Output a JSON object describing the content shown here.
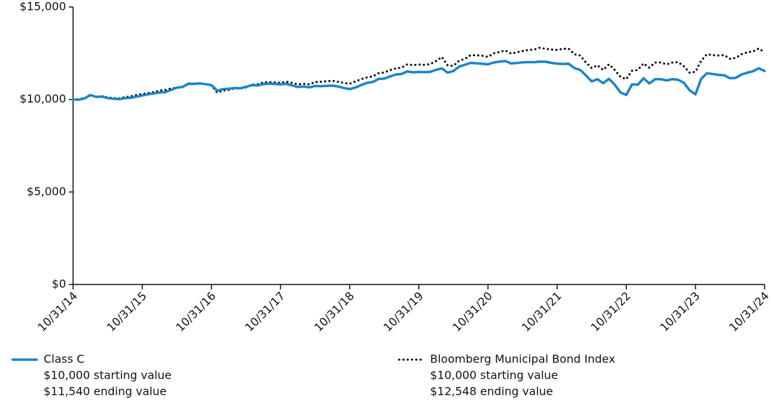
{
  "chart_data": {
    "type": "line",
    "categories": [
      "10/31/14",
      null,
      null,
      null,
      null,
      null,
      null,
      null,
      null,
      null,
      null,
      null,
      "10/31/15",
      null,
      null,
      null,
      null,
      null,
      null,
      null,
      null,
      null,
      null,
      null,
      "10/31/16",
      null,
      null,
      null,
      null,
      null,
      null,
      null,
      null,
      null,
      null,
      null,
      "10/31/17",
      null,
      null,
      null,
      null,
      null,
      null,
      null,
      null,
      null,
      null,
      null,
      "10/31/18",
      null,
      null,
      null,
      null,
      null,
      null,
      null,
      null,
      null,
      null,
      null,
      "10/31/19",
      null,
      null,
      null,
      null,
      null,
      null,
      null,
      null,
      null,
      null,
      null,
      "10/31/20",
      null,
      null,
      null,
      null,
      null,
      null,
      null,
      null,
      null,
      null,
      null,
      "10/31/21",
      null,
      null,
      null,
      null,
      null,
      null,
      null,
      null,
      null,
      null,
      null,
      "10/31/22",
      null,
      null,
      null,
      null,
      null,
      null,
      null,
      null,
      null,
      null,
      null,
      "10/31/23",
      null,
      null,
      null,
      null,
      null,
      null,
      null,
      null,
      null,
      null,
      null,
      "10/31/24"
    ],
    "series": [
      {
        "name": "Class C",
        "color": "#1a85c6",
        "style": "solid",
        "start_text": "$10,000 starting value",
        "end_text": "$11,540 ending value",
        "values": [
          10000,
          9990,
          10060,
          10250,
          10140,
          10160,
          10080,
          10040,
          10020,
          10070,
          10090,
          10150,
          10220,
          10280,
          10330,
          10380,
          10400,
          10520,
          10640,
          10680,
          10850,
          10840,
          10870,
          10830,
          10780,
          10480,
          10560,
          10580,
          10620,
          10610,
          10680,
          10780,
          10760,
          10830,
          10860,
          10840,
          10820,
          10850,
          10760,
          10680,
          10700,
          10660,
          10730,
          10720,
          10740,
          10750,
          10700,
          10620,
          10560,
          10650,
          10780,
          10900,
          10950,
          11110,
          11130,
          11250,
          11350,
          11380,
          11520,
          11470,
          11490,
          11480,
          11500,
          11600,
          11680,
          11450,
          11540,
          11780,
          11880,
          11980,
          11960,
          11930,
          11900,
          12000,
          12050,
          12080,
          11950,
          11970,
          12010,
          12020,
          12020,
          12050,
          12040,
          11980,
          11940,
          11920,
          11930,
          11700,
          11600,
          11300,
          10980,
          11100,
          10880,
          11120,
          10800,
          10380,
          10250,
          10820,
          10800,
          11150,
          10870,
          11100,
          11100,
          11030,
          11100,
          11070,
          10900,
          10500,
          10280,
          11120,
          11420,
          11380,
          11330,
          11310,
          11150,
          11170,
          11350,
          11450,
          11530,
          11690,
          11540
        ]
      },
      {
        "name": "Bloomberg Municipal Bond Index",
        "color": "#000000",
        "style": "dotted",
        "start_text": "$10,000 starting value",
        "end_text": "$12,548 ending value",
        "values": [
          10000,
          10020,
          10080,
          10220,
          10140,
          10180,
          10120,
          10080,
          10060,
          10130,
          10170,
          10240,
          10300,
          10350,
          10400,
          10480,
          10520,
          10600,
          10630,
          10680,
          10880,
          10860,
          10880,
          10840,
          10760,
          10380,
          10480,
          10520,
          10600,
          10590,
          10650,
          10800,
          10820,
          10920,
          10940,
          10920,
          10900,
          10960,
          10900,
          10820,
          10840,
          10820,
          10950,
          10960,
          10990,
          11010,
          10960,
          10900,
          10850,
          10980,
          11100,
          11200,
          11250,
          11420,
          11460,
          11590,
          11680,
          11720,
          11900,
          11860,
          11890,
          11870,
          11920,
          12080,
          12300,
          11840,
          11820,
          12100,
          12200,
          12400,
          12390,
          12370,
          12300,
          12500,
          12570,
          12650,
          12480,
          12550,
          12620,
          12680,
          12700,
          12800,
          12740,
          12700,
          12680,
          12740,
          12750,
          12450,
          12380,
          12000,
          11700,
          11850,
          11600,
          11900,
          11600,
          11220,
          11100,
          11550,
          11600,
          11950,
          11720,
          12000,
          12000,
          11900,
          12000,
          12020,
          11800,
          11450,
          11500,
          12100,
          12450,
          12400,
          12380,
          12400,
          12200,
          12250,
          12450,
          12550,
          12600,
          12760,
          12548
        ]
      }
    ],
    "ylim": [
      0,
      15000
    ],
    "yticks": [
      {
        "value": 0,
        "label": "$0"
      },
      {
        "value": 5000,
        "label": "$5,000"
      },
      {
        "value": 10000,
        "label": "$10,000"
      },
      {
        "value": 15000,
        "label": "$15,000"
      }
    ],
    "grid": false
  }
}
